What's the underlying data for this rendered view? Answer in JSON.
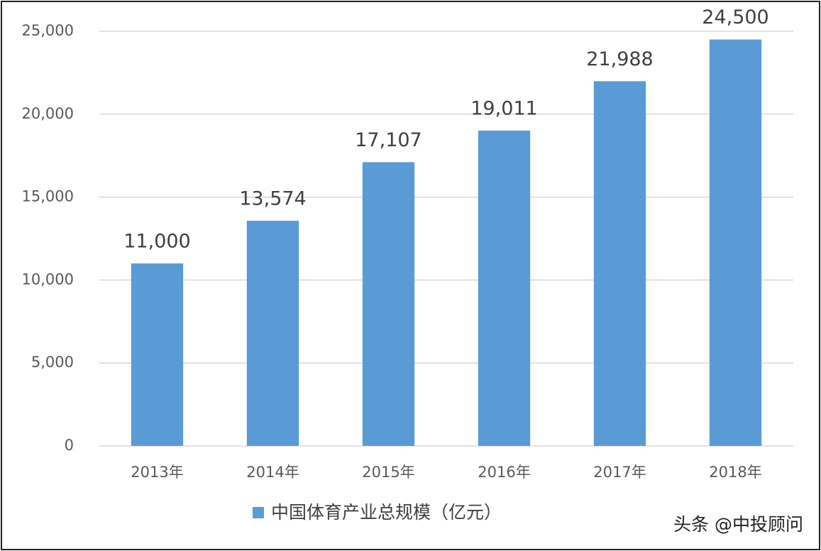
{
  "chart_data": {
    "type": "bar",
    "categories": [
      "2013年",
      "2014年",
      "2015年",
      "2016年",
      "2017年",
      "2018年"
    ],
    "values": [
      11000,
      13574,
      17107,
      19011,
      21988,
      24500
    ],
    "value_labels": [
      "11,000",
      "13,574",
      "17,107",
      "19,011",
      "21,988",
      "24,500"
    ],
    "series_name": "中国体育产业总规模（亿元）",
    "color": "#5b9bd5",
    "ylim": [
      0,
      25000
    ],
    "yticks": [
      0,
      {
        "value": 5000,
        "label": "5,000"
      },
      {
        "value": 10000,
        "label": "10,000"
      },
      {
        "value": 15000,
        "label": "15,000"
      },
      {
        "value": 20000,
        "label": "20,000"
      },
      {
        "value": 25000,
        "label": "25,000"
      }
    ],
    "grid": true,
    "legend": "bottom",
    "watermark": "头条 @中投顾问"
  }
}
